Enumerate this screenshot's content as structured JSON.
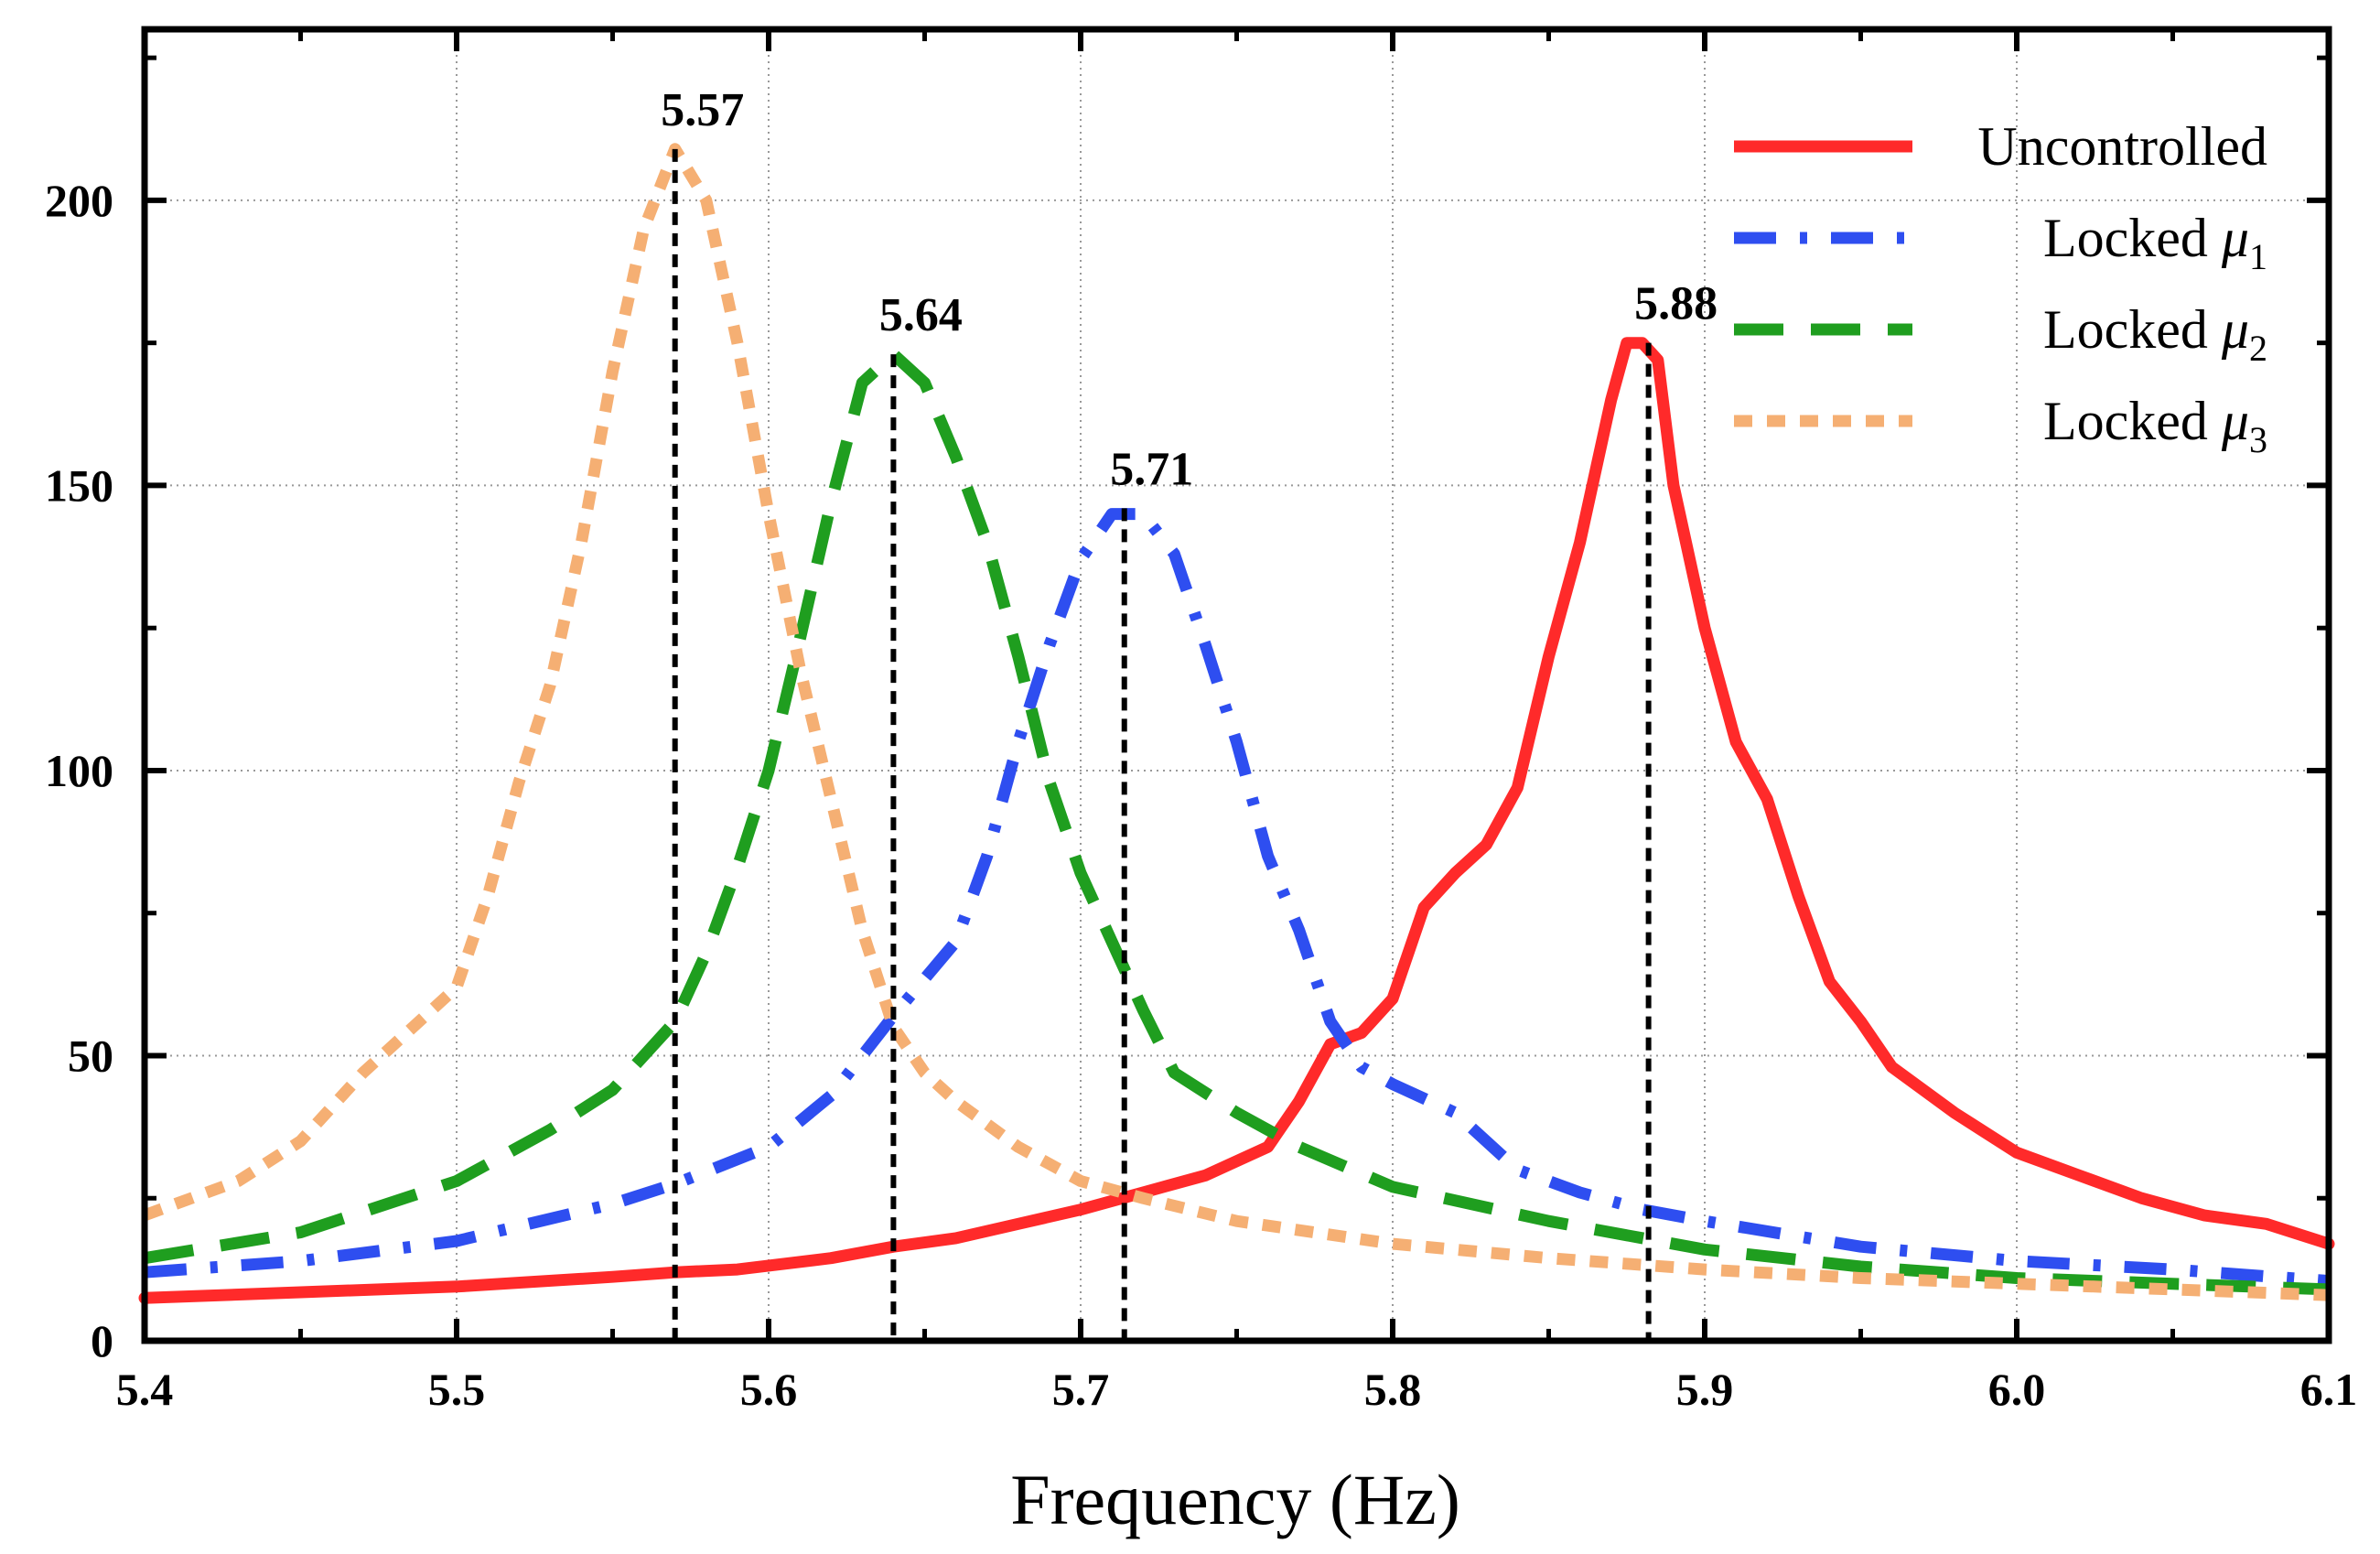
{
  "chart_data": {
    "type": "line",
    "title": "",
    "xlabel": "Frequency (Hz)",
    "ylabel": "",
    "xlim": [
      5.4,
      6.1
    ],
    "ylim": [
      0,
      230
    ],
    "xticks": [
      "5.4",
      "5.5",
      "5.6",
      "5.7",
      "5.8",
      "5.9",
      "6.0",
      "6.1"
    ],
    "yticks": [
      "0",
      "50",
      "100",
      "150",
      "200"
    ],
    "grid": true,
    "legend_position": "top-right",
    "series": [
      {
        "name": "Uncontrolled",
        "color": "#FF2A2A",
        "dash": "solid",
        "points": [
          [
            5.4,
            7.5
          ],
          [
            5.45,
            8.5
          ],
          [
            5.5,
            9.5
          ],
          [
            5.55,
            11.2
          ],
          [
            5.57,
            12
          ],
          [
            5.59,
            12.5
          ],
          [
            5.62,
            14.5
          ],
          [
            5.64,
            16.5
          ],
          [
            5.66,
            18
          ],
          [
            5.68,
            20.5
          ],
          [
            5.7,
            23
          ],
          [
            5.72,
            26
          ],
          [
            5.74,
            29
          ],
          [
            5.76,
            34
          ],
          [
            5.77,
            42
          ],
          [
            5.78,
            52
          ],
          [
            5.79,
            54
          ],
          [
            5.8,
            60
          ],
          [
            5.81,
            76
          ],
          [
            5.82,
            82
          ],
          [
            5.83,
            87
          ],
          [
            5.84,
            97
          ],
          [
            5.85,
            120
          ],
          [
            5.86,
            140
          ],
          [
            5.87,
            165
          ],
          [
            5.875,
            175
          ],
          [
            5.88,
            175
          ],
          [
            5.885,
            172
          ],
          [
            5.89,
            150
          ],
          [
            5.9,
            125
          ],
          [
            5.91,
            105
          ],
          [
            5.92,
            95
          ],
          [
            5.93,
            78
          ],
          [
            5.94,
            63
          ],
          [
            5.95,
            56
          ],
          [
            5.96,
            48
          ],
          [
            5.98,
            40
          ],
          [
            6.0,
            33
          ],
          [
            6.02,
            29
          ],
          [
            6.04,
            25
          ],
          [
            6.06,
            22
          ],
          [
            6.08,
            20.5
          ],
          [
            6.1,
            17
          ]
        ]
      },
      {
        "name": "Locked μ1",
        "name_main": "Locked ",
        "name_symbol": "μ",
        "name_sub": "1",
        "color": "#2E4EF0",
        "dash": "dashdot",
        "points": [
          [
            5.4,
            12
          ],
          [
            5.45,
            14
          ],
          [
            5.5,
            17.5
          ],
          [
            5.55,
            24
          ],
          [
            5.57,
            27.5
          ],
          [
            5.6,
            34
          ],
          [
            5.62,
            43
          ],
          [
            5.64,
            57
          ],
          [
            5.66,
            70
          ],
          [
            5.67,
            85
          ],
          [
            5.68,
            105
          ],
          [
            5.69,
            122
          ],
          [
            5.7,
            137
          ],
          [
            5.71,
            145
          ],
          [
            5.72,
            145
          ],
          [
            5.73,
            138
          ],
          [
            5.74,
            122
          ],
          [
            5.75,
            105
          ],
          [
            5.76,
            85
          ],
          [
            5.77,
            72
          ],
          [
            5.78,
            56
          ],
          [
            5.79,
            48
          ],
          [
            5.8,
            45
          ],
          [
            5.82,
            40
          ],
          [
            5.84,
            30
          ],
          [
            5.86,
            26
          ],
          [
            5.88,
            23
          ],
          [
            5.9,
            21
          ],
          [
            5.95,
            16.5
          ],
          [
            6.0,
            14
          ],
          [
            6.05,
            12.5
          ],
          [
            6.1,
            10.5
          ]
        ]
      },
      {
        "name": "Locked μ2",
        "name_main": "Locked ",
        "name_symbol": "μ",
        "name_sub": "2",
        "color": "#1F9E1F",
        "dash": "dashed",
        "points": [
          [
            5.4,
            14.5
          ],
          [
            5.45,
            19
          ],
          [
            5.5,
            28
          ],
          [
            5.53,
            37
          ],
          [
            5.55,
            44
          ],
          [
            5.57,
            56
          ],
          [
            5.58,
            68
          ],
          [
            5.59,
            83
          ],
          [
            5.6,
            100
          ],
          [
            5.61,
            123
          ],
          [
            5.62,
            147
          ],
          [
            5.63,
            168
          ],
          [
            5.64,
            173
          ],
          [
            5.65,
            168
          ],
          [
            5.66,
            155
          ],
          [
            5.67,
            140
          ],
          [
            5.68,
            120
          ],
          [
            5.69,
            98
          ],
          [
            5.7,
            82
          ],
          [
            5.71,
            70
          ],
          [
            5.72,
            58
          ],
          [
            5.73,
            47
          ],
          [
            5.75,
            40
          ],
          [
            5.77,
            34
          ],
          [
            5.8,
            27
          ],
          [
            5.85,
            21
          ],
          [
            5.9,
            16
          ],
          [
            5.95,
            13
          ],
          [
            6.0,
            11
          ],
          [
            6.05,
            10
          ],
          [
            6.1,
            9
          ]
        ]
      },
      {
        "name": "Locked μ3",
        "name_main": "Locked ",
        "name_symbol": "μ",
        "name_sub": "3",
        "color": "#F5AF73",
        "dash": "dotted",
        "points": [
          [
            5.4,
            22
          ],
          [
            5.43,
            28
          ],
          [
            5.45,
            35
          ],
          [
            5.47,
            47
          ],
          [
            5.49,
            57
          ],
          [
            5.5,
            62
          ],
          [
            5.51,
            78
          ],
          [
            5.52,
            98
          ],
          [
            5.53,
            115
          ],
          [
            5.54,
            140
          ],
          [
            5.55,
            170
          ],
          [
            5.56,
            195
          ],
          [
            5.57,
            209
          ],
          [
            5.58,
            200
          ],
          [
            5.59,
            175
          ],
          [
            5.6,
            145
          ],
          [
            5.61,
            118
          ],
          [
            5.62,
            95
          ],
          [
            5.63,
            72
          ],
          [
            5.64,
            55
          ],
          [
            5.65,
            47
          ],
          [
            5.66,
            42
          ],
          [
            5.68,
            34
          ],
          [
            5.7,
            28
          ],
          [
            5.72,
            25
          ],
          [
            5.75,
            21
          ],
          [
            5.8,
            17
          ],
          [
            5.85,
            14.5
          ],
          [
            5.9,
            12.5
          ],
          [
            5.95,
            11
          ],
          [
            6.0,
            10
          ],
          [
            6.05,
            9
          ],
          [
            6.1,
            8
          ]
        ]
      }
    ],
    "peak_markers": [
      {
        "label": "5.57",
        "x": 5.57,
        "y": 209
      },
      {
        "label": "5.64",
        "x": 5.64,
        "y": 173
      },
      {
        "label": "5.71",
        "x": 5.714,
        "y": 146
      },
      {
        "label": "5.88",
        "x": 5.882,
        "y": 175
      }
    ]
  }
}
